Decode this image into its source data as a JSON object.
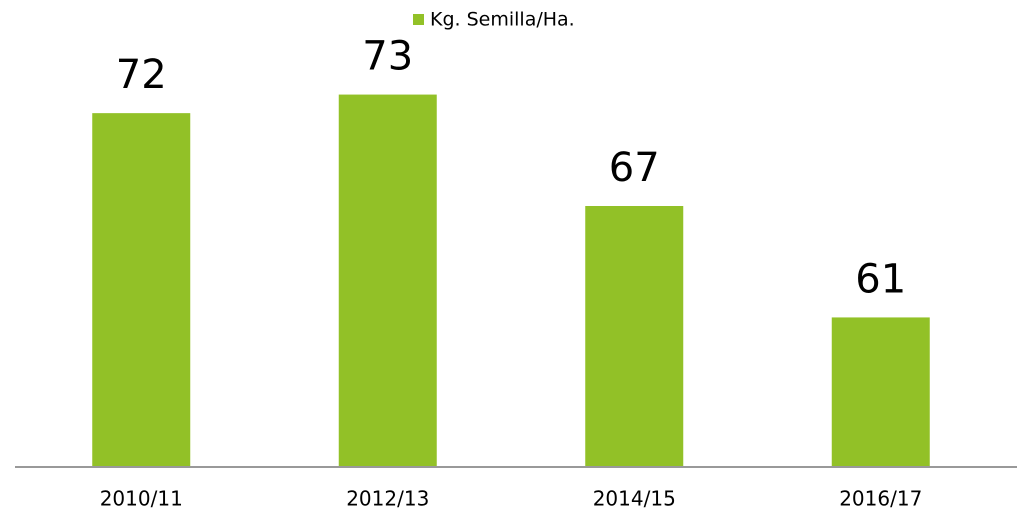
{
  "chart_data": {
    "type": "bar",
    "categories": [
      "2010/11",
      "2012/13",
      "2014/15",
      "2016/17"
    ],
    "series": [
      {
        "name": "Kg. Semilla/Ha.",
        "color": "#92c127",
        "values": [
          72,
          73,
          67,
          61
        ]
      }
    ],
    "ylim": [
      53,
      74
    ],
    "legend": "top"
  }
}
